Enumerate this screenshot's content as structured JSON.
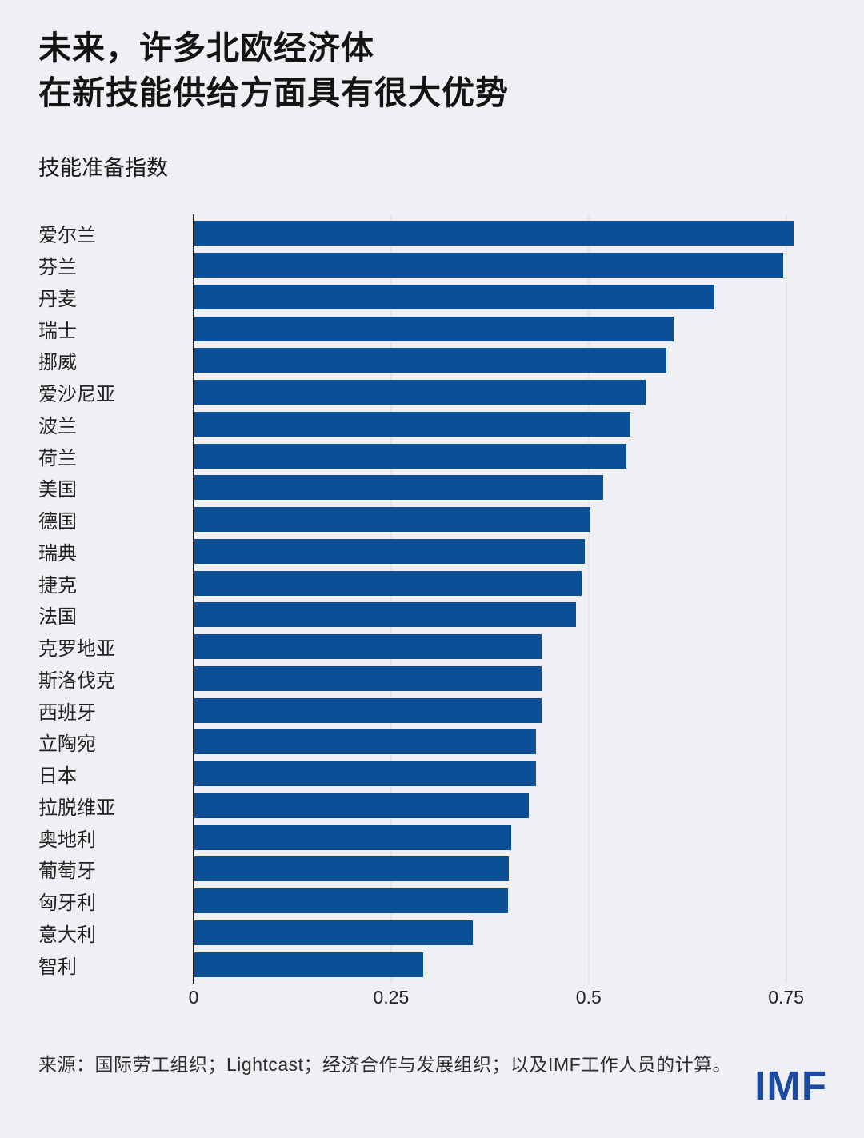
{
  "header": {
    "title_line1": "未来，许多北欧经济体",
    "title_line2": "在新技能供给方面具有很大优势",
    "subtitle": "技能准备指数"
  },
  "footer": {
    "source": "来源：国际劳工组织；Lightcast；经济合作与发展组织；以及IMF工作人员的计算。",
    "logo": "IMF"
  },
  "colors": {
    "background": "#eef0f3",
    "bar": "#0d4f97",
    "axis_line": "#1c1c1c",
    "gridline": "#e2e4e8",
    "logo_blue": "#1b4a9e"
  },
  "chart_data": {
    "type": "bar",
    "orientation": "horizontal",
    "title": "未来，许多北欧经济体在新技能供给方面具有很大优势",
    "subtitle": "技能准备指数",
    "xlabel": "",
    "ylabel": "技能准备指数",
    "xlim": [
      0,
      0.8
    ],
    "x_ticks": [
      0,
      0.25,
      0.5,
      0.75
    ],
    "x_tick_labels": [
      "0",
      "0.25",
      "0.5",
      "0.75"
    ],
    "grid": "vertical",
    "legend": "none",
    "categories": [
      "爱尔兰",
      "芬兰",
      "丹麦",
      "瑞士",
      "挪威",
      "爱沙尼亚",
      "波兰",
      "荷兰",
      "美国",
      "德国",
      "瑞典",
      "捷克",
      "法国",
      "克罗地亚",
      "斯洛伐克",
      "西班牙",
      "立陶宛",
      "日本",
      "拉脱维亚",
      "奥地利",
      "葡萄牙",
      "匈牙利",
      "意大利",
      "智利"
    ],
    "values": [
      0.759,
      0.746,
      0.659,
      0.608,
      0.598,
      0.572,
      0.553,
      0.548,
      0.518,
      0.502,
      0.495,
      0.491,
      0.484,
      0.44,
      0.44,
      0.44,
      0.433,
      0.433,
      0.424,
      0.402,
      0.399,
      0.398,
      0.353,
      0.291
    ]
  }
}
